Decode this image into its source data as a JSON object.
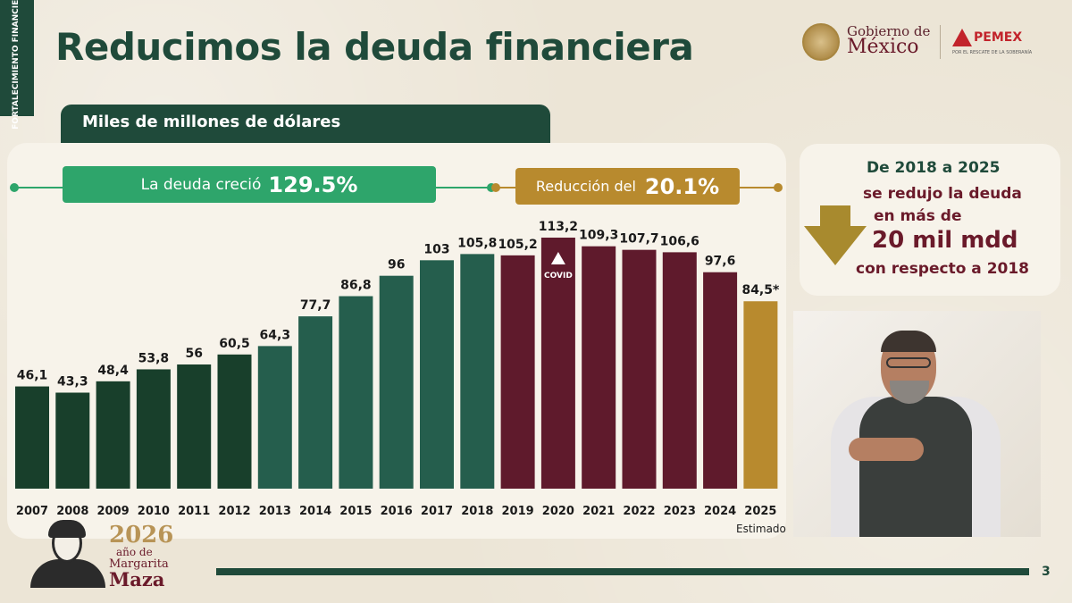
{
  "slide": {
    "side_tab": "FORTALECIMIENTO FINANCIERO",
    "title": "Reducimos la deuda financiera",
    "page_number": "3"
  },
  "logos": {
    "gobierno_top": "Gobierno de",
    "gobierno_main": "México",
    "pemex": "PEMEX",
    "pemex_tagline": "POR EL RESCATE DE LA SOBERANÍA"
  },
  "chart_header": {
    "units": "Miles de millones de dólares",
    "growth_text": "La deuda creció",
    "growth_value": "129.5%",
    "reduction_text": "Reducción del",
    "reduction_value": "20.1%",
    "footnote": "Estimado"
  },
  "chart_data": {
    "type": "bar",
    "title": "",
    "ylabel": "Miles de millones de dólares",
    "categories": [
      "2007",
      "2008",
      "2009",
      "2010",
      "2011",
      "2012",
      "2013",
      "2014",
      "2015",
      "2016",
      "2017",
      "2018",
      "2019",
      "2020",
      "2021",
      "2022",
      "2023",
      "2024",
      "2025"
    ],
    "values": [
      46.1,
      43.3,
      48.4,
      53.8,
      56,
      60.5,
      64.3,
      77.7,
      86.8,
      96,
      103,
      105.8,
      105.2,
      113.2,
      109.3,
      107.7,
      106.6,
      97.6,
      84.5
    ],
    "labels": [
      "46,1",
      "43,3",
      "48,4",
      "53,8",
      "56",
      "60,5",
      "64,3",
      "77,7",
      "86,8",
      "96",
      "103",
      "105,8",
      "105,2",
      "113,2",
      "109,3",
      "107,7",
      "106,6",
      "97,6",
      "84,5*"
    ],
    "colors": [
      "#183f2b",
      "#183f2b",
      "#183f2b",
      "#183f2b",
      "#183f2b",
      "#183f2b",
      "#255e4d",
      "#255e4d",
      "#255e4d",
      "#255e4d",
      "#255e4d",
      "#255e4d",
      "#5f1a2c",
      "#5f1a2c",
      "#5f1a2c",
      "#5f1a2c",
      "#5f1a2c",
      "#5f1a2c",
      "#b88a2e"
    ],
    "annotation": {
      "category": "2020",
      "text": "COVID"
    },
    "ylim": [
      0,
      120
    ],
    "grid": false,
    "legend": "none"
  },
  "info_box": {
    "line1": "De 2018 a 2025",
    "line2": "se redujo la deuda",
    "line3": "en más de",
    "line4": "20 mil mdd",
    "line5": "con respecto a 2018"
  },
  "commemorative": {
    "year": "2026",
    "line2": "año de",
    "line3": "Margarita",
    "line4": "Maza"
  },
  "colors": {
    "brand_green": "#1f4a3a",
    "growth_green": "#2ea56b",
    "gold": "#b88a2e",
    "maroon": "#5f1a2c"
  }
}
